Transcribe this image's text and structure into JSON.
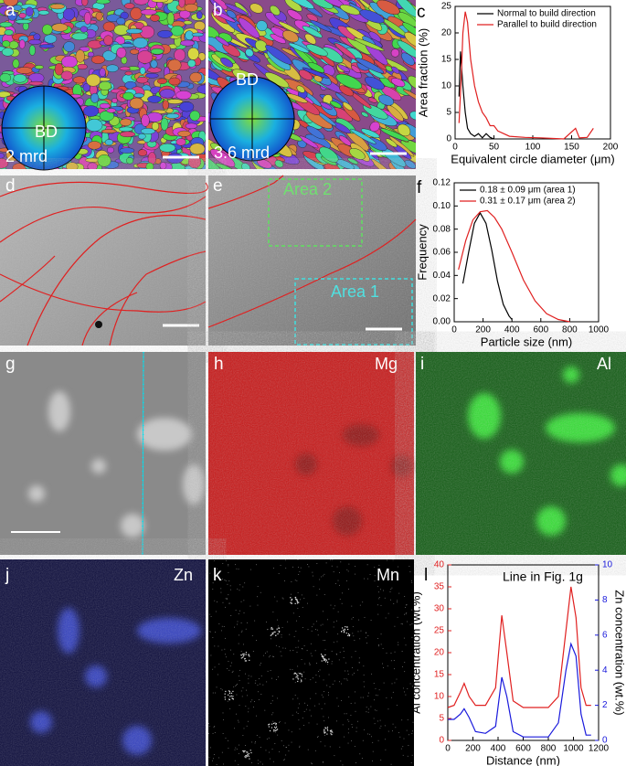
{
  "panels": [
    {
      "letter": "a",
      "labels": [
        "BD",
        "2 mrd"
      ]
    },
    {
      "letter": "b",
      "labels": [
        "BD",
        "3.6 mrd"
      ]
    },
    {
      "letter": "c"
    },
    {
      "letter": "d"
    },
    {
      "letter": "e",
      "labels": [
        "Area 2",
        "Area 1"
      ]
    },
    {
      "letter": "f"
    },
    {
      "letter": "g"
    },
    {
      "letter": "h",
      "labels": [
        "Mg"
      ]
    },
    {
      "letter": "i",
      "labels": [
        "Al"
      ]
    },
    {
      "letter": "j",
      "labels": [
        "Zn"
      ]
    },
    {
      "letter": "k",
      "labels": [
        "Mn"
      ]
    },
    {
      "letter": "l"
    }
  ],
  "chart_data": [
    {
      "type": "line",
      "xlabel": "Equivalent circle diameter (μm)",
      "ylabel": "Area fraction (%)",
      "xlim": [
        0,
        200
      ],
      "xticks": [
        0,
        50,
        100,
        150,
        200
      ],
      "ylim": [
        0,
        25
      ],
      "yticks": [
        0,
        5,
        10,
        15,
        20,
        25
      ],
      "legend": "upper right",
      "series": [
        {
          "name": "Normal to build direction",
          "color": "#000000",
          "x": [
            5,
            7,
            10,
            13,
            16,
            20,
            25,
            30,
            35,
            40,
            45,
            50
          ],
          "values": [
            8,
            16.5,
            10,
            5,
            2,
            1,
            0.5,
            1,
            0.2,
            1,
            0.3,
            0
          ]
        },
        {
          "name": "Parallel to build direction",
          "color": "#e02020",
          "x": [
            5,
            8,
            10,
            13,
            16,
            20,
            25,
            30,
            35,
            40,
            45,
            50,
            55,
            70,
            90,
            110,
            140,
            155,
            160,
            170,
            178
          ],
          "values": [
            3,
            12,
            20,
            24,
            22,
            15,
            10,
            7,
            5,
            4,
            2.5,
            2.5,
            1.5,
            0.5,
            0.3,
            0.2,
            0,
            2,
            0.2,
            0.3,
            2
          ]
        }
      ]
    },
    {
      "type": "line",
      "xlabel": "Particle size (nm)",
      "ylabel": "Frequency",
      "xlim": [
        0,
        1000
      ],
      "xticks": [
        0,
        200,
        400,
        600,
        800,
        1000
      ],
      "ylim": [
        0,
        0.12
      ],
      "yticks": [
        {
          "value": 0,
          "label": "0.00"
        },
        0.02,
        0.04,
        0.06,
        0.08,
        {
          "value": 0.1,
          "label": "0.10"
        },
        0.12
      ],
      "legend": "upper left",
      "series": [
        {
          "name": "0.18 ± 0.09 μm (area 1)",
          "color": "#000000",
          "x": [
            60,
            100,
            140,
            180,
            220,
            260,
            300,
            340,
            380,
            400
          ],
          "values": [
            0.033,
            0.06,
            0.085,
            0.094,
            0.085,
            0.062,
            0.035,
            0.015,
            0.005,
            0.002
          ]
        },
        {
          "name": "0.31 ± 0.17 μm (area 2)",
          "color": "#e02020",
          "x": [
            30,
            80,
            130,
            180,
            230,
            280,
            330,
            400,
            480,
            560,
            640,
            720,
            800
          ],
          "values": [
            0.045,
            0.07,
            0.088,
            0.095,
            0.096,
            0.09,
            0.08,
            0.06,
            0.036,
            0.018,
            0.007,
            0.002,
            0
          ]
        }
      ]
    },
    {
      "type": "line",
      "xlabel": "Distance (nm)",
      "ylabel": "Al concentration (wt.%)",
      "y2label": "Zn concentration (wt.%)",
      "annotation": "Line in Fig. 1g",
      "y2color": "#1a1adc",
      "xlim": [
        0,
        1200
      ],
      "xticks": [
        0,
        200,
        400,
        600,
        800,
        1000,
        1200
      ],
      "ylim": [
        0,
        40
      ],
      "yticks": [
        0,
        5,
        10,
        15,
        20,
        25,
        30,
        35,
        40
      ],
      "y2lim": [
        0,
        10
      ],
      "y2ticks": [
        0,
        2,
        4,
        6,
        8,
        10
      ],
      "x": [
        0,
        50,
        100,
        130,
        170,
        220,
        300,
        380,
        430,
        470,
        520,
        600,
        700,
        800,
        880,
        940,
        980,
        1020,
        1060,
        1100,
        1140
      ],
      "series": [
        {
          "name": "Al",
          "color": "#e02020",
          "values": [
            7.5,
            8,
            11,
            13,
            10,
            8,
            8,
            12,
            28.5,
            20,
            9,
            7.5,
            7.5,
            7.5,
            10,
            25,
            35,
            28,
            12,
            8,
            8
          ]
        },
        {
          "name": "Zn",
          "color": "#1a1adc",
          "axis": "y2",
          "values": [
            1.2,
            1.2,
            1.5,
            1.8,
            1.3,
            0.5,
            0.4,
            0.8,
            3.6,
            2.5,
            0.5,
            0.2,
            0.2,
            0.2,
            1,
            4,
            5.5,
            4.8,
            1.5,
            0.3,
            0.3
          ]
        }
      ]
    }
  ]
}
